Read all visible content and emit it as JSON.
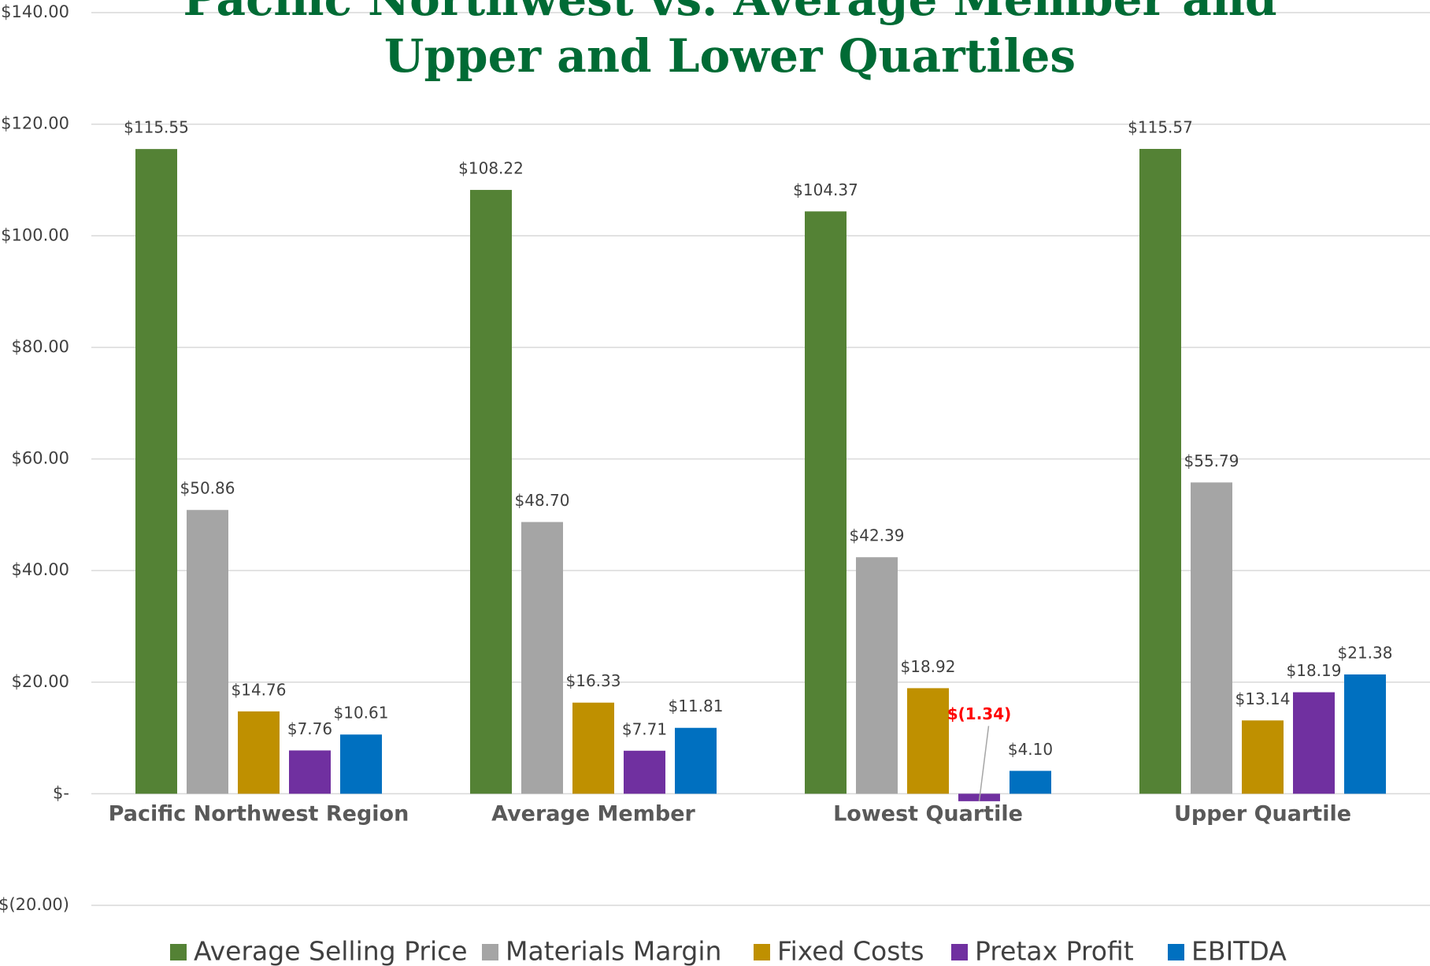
{
  "chart_data": {
    "type": "bar",
    "title": [
      "Pacific Northwest vs. Average Member and",
      "Upper and Lower Quartiles"
    ],
    "categories": [
      "Pacific Northwest Region",
      "Average Member",
      "Lowest Quartile",
      "Upper Quartile"
    ],
    "series": [
      {
        "name": "Average Selling Price",
        "color": "#548235",
        "values": [
          115.55,
          108.22,
          104.37,
          115.57
        ],
        "value_labels": [
          "$115.55",
          "$108.22",
          "$104.37",
          "$115.57"
        ]
      },
      {
        "name": "Materials Margin",
        "color": "#a5a5a5",
        "values": [
          50.86,
          48.7,
          42.39,
          55.79
        ],
        "value_labels": [
          "$50.86",
          "$48.70",
          "$42.39",
          "$55.79"
        ]
      },
      {
        "name": "Fixed Costs",
        "color": "#bf9000",
        "values": [
          14.76,
          16.33,
          18.92,
          13.14
        ],
        "value_labels": [
          "$14.76",
          "$16.33",
          "$18.92",
          "$13.14"
        ]
      },
      {
        "name": "Pretax Profit",
        "color": "#7030a0",
        "values": [
          7.76,
          7.71,
          -1.34,
          18.19
        ],
        "value_labels": [
          "$7.76",
          "$7.71",
          "$(1.34)",
          "$18.19"
        ]
      },
      {
        "name": "EBITDA",
        "color": "#0070c0",
        "values": [
          10.61,
          11.81,
          4.1,
          21.38
        ],
        "value_labels": [
          "$10.61",
          "$11.81",
          "$4.10",
          "$21.38"
        ]
      }
    ],
    "ylim": [
      -20,
      140
    ],
    "yticks": [
      {
        "value": -20,
        "label": "$(20.00)"
      },
      {
        "value": 0,
        "label": "$-"
      },
      {
        "value": 20,
        "label": "$20.00"
      },
      {
        "value": 40,
        "label": "$40.00"
      },
      {
        "value": 60,
        "label": "$60.00"
      },
      {
        "value": 80,
        "label": "$80.00"
      },
      {
        "value": 100,
        "label": "$100.00"
      },
      {
        "value": 120,
        "label": "$120.00"
      },
      {
        "value": 140,
        "label": "$140.00"
      }
    ],
    "grid": true
  }
}
